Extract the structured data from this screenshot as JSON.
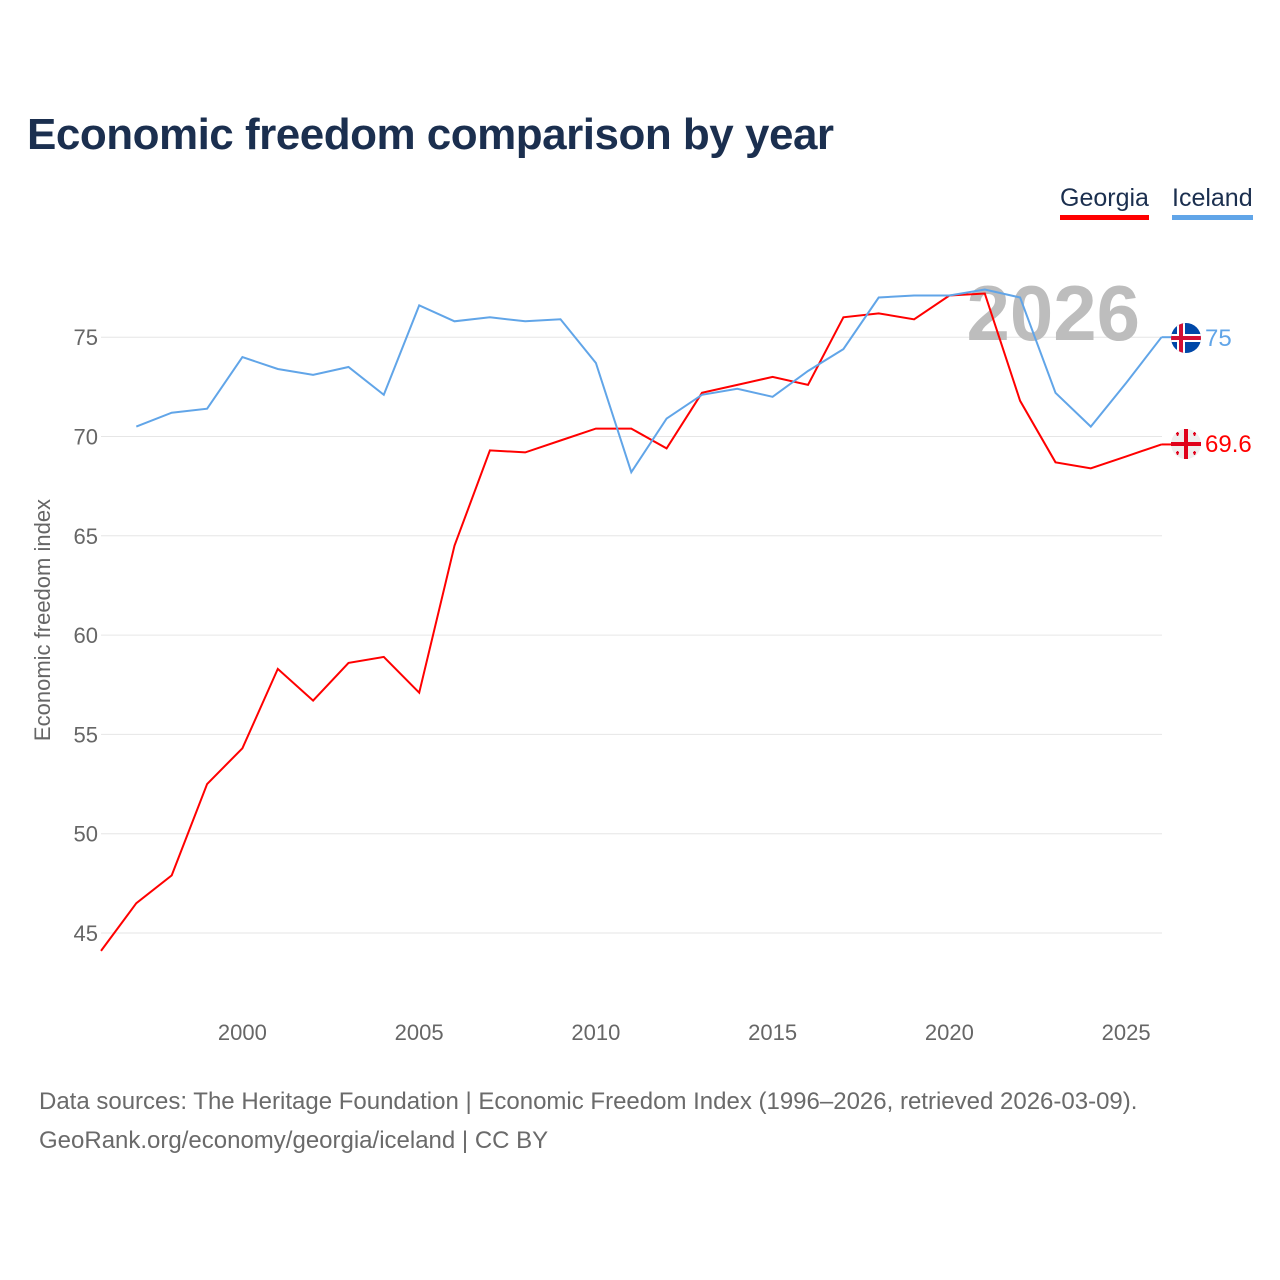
{
  "chart_data": {
    "type": "line",
    "title": "Economic freedom comparison by year",
    "xlabel": "",
    "ylabel": "Economic freedom index",
    "xlim": [
      1996,
      2026
    ],
    "ylim": [
      42,
      79
    ],
    "x_ticks": [
      "2000",
      "2005",
      "2010",
      "2015",
      "2020",
      "2025"
    ],
    "y_ticks": [
      "45",
      "50",
      "55",
      "60",
      "65",
      "70",
      "75"
    ],
    "grid": true,
    "legend_position": "top-right",
    "watermark_year": "2026",
    "series": [
      {
        "name": "Georgia",
        "color": "#ff0000",
        "end_label": "69.6",
        "x": [
          1996,
          1997,
          1998,
          1999,
          2000,
          2001,
          2002,
          2003,
          2004,
          2005,
          2006,
          2007,
          2008,
          2009,
          2010,
          2011,
          2012,
          2013,
          2014,
          2015,
          2016,
          2017,
          2018,
          2019,
          2020,
          2021,
          2022,
          2023,
          2024,
          2025,
          2026
        ],
        "values": [
          44.1,
          46.5,
          47.9,
          52.5,
          54.3,
          58.3,
          56.7,
          58.6,
          58.9,
          57.1,
          64.5,
          69.3,
          69.2,
          69.8,
          70.4,
          70.4,
          69.4,
          72.2,
          72.6,
          73.0,
          72.6,
          76.0,
          76.2,
          75.9,
          77.1,
          77.2,
          71.8,
          68.7,
          68.4,
          69.0,
          69.6
        ]
      },
      {
        "name": "Iceland",
        "color": "#61a5e8",
        "end_label": "75",
        "x": [
          1997,
          1998,
          1999,
          2000,
          2001,
          2002,
          2003,
          2004,
          2005,
          2006,
          2007,
          2008,
          2009,
          2010,
          2011,
          2012,
          2013,
          2014,
          2015,
          2016,
          2017,
          2018,
          2019,
          2020,
          2021,
          2022,
          2023,
          2024,
          2025,
          2026
        ],
        "values": [
          70.5,
          71.2,
          71.4,
          74.0,
          73.4,
          73.1,
          73.5,
          72.1,
          76.6,
          75.8,
          76.0,
          75.8,
          75.9,
          73.7,
          68.2,
          70.9,
          72.1,
          72.4,
          72.0,
          73.3,
          74.4,
          77.0,
          77.1,
          77.1,
          77.4,
          77.0,
          72.2,
          70.5,
          72.7,
          75.0
        ]
      }
    ]
  },
  "footer": {
    "sources": "Data sources: The Heritage Foundation | Economic Freedom Index (1996–2026, retrieved 2026-03-09).",
    "link": "GeoRank.org/economy/georgia/iceland | CC BY"
  }
}
